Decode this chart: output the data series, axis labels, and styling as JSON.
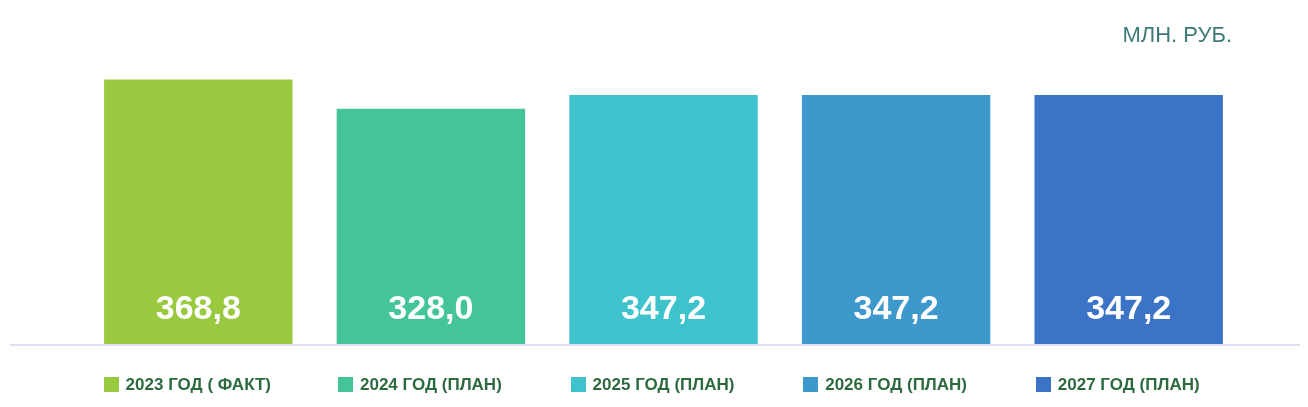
{
  "chart_data": {
    "type": "bar",
    "ylabel": "МЛН. РУБ.",
    "categories": [
      "2023 ГОД ( ФАКТ)",
      "2024 ГОД (ПЛАН)",
      "2025 ГОД (ПЛАН)",
      "2026 ГОД (ПЛАН)",
      "2027 ГОД (ПЛАН)"
    ],
    "values": [
      368.8,
      328.0,
      347.2,
      347.2,
      347.2
    ],
    "value_labels": [
      "368,8",
      "328,0",
      "347,2",
      "347,2",
      "347,2"
    ],
    "colors": [
      "#98c93f",
      "#44c597",
      "#3ec2cc",
      "#3d98cc",
      "#3b73c6"
    ],
    "grid": false
  }
}
